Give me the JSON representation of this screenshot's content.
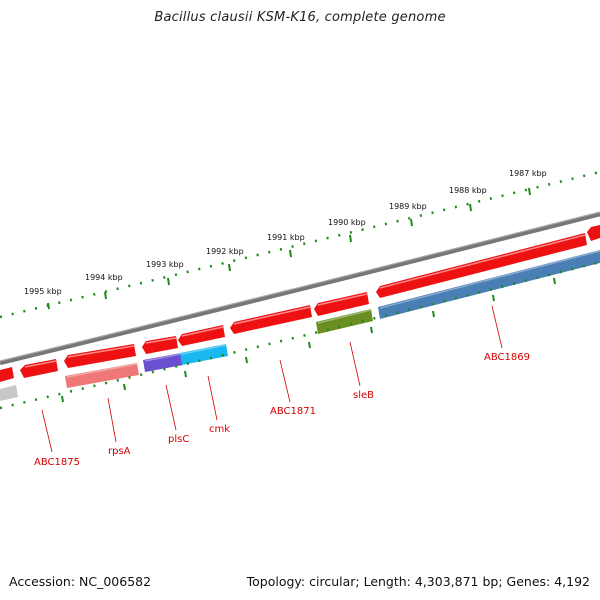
{
  "title": "Bacillus clausii KSM-K16, complete genome",
  "accession": "Accession: NC_006582",
  "summary": "Topology: circular; Length: 4,303,871 bp; Genes: 4,192",
  "kbp_labels": [
    "1995 kbp",
    "1994 kbp",
    "1993 kbp",
    "1992 kbp",
    "1991 kbp",
    "1990 kbp",
    "1989 kbp",
    "1988 kbp",
    "1987 kbp"
  ],
  "gene_labels": [
    "ABC1875",
    "rpsA",
    "plsC",
    "cmk",
    "ABC1871",
    "sleB",
    "ABC1869"
  ],
  "colors": {
    "cds_red": "#ee1111",
    "rpsA": "#ee7777",
    "plsC": "#6a4fcf",
    "cmk": "#1ab8f0",
    "sleB": "#6b8e23",
    "ABC1869": "#4a7fb5",
    "tick": "#1e8a1e",
    "backbone": "#777777",
    "label": "#d40000"
  }
}
